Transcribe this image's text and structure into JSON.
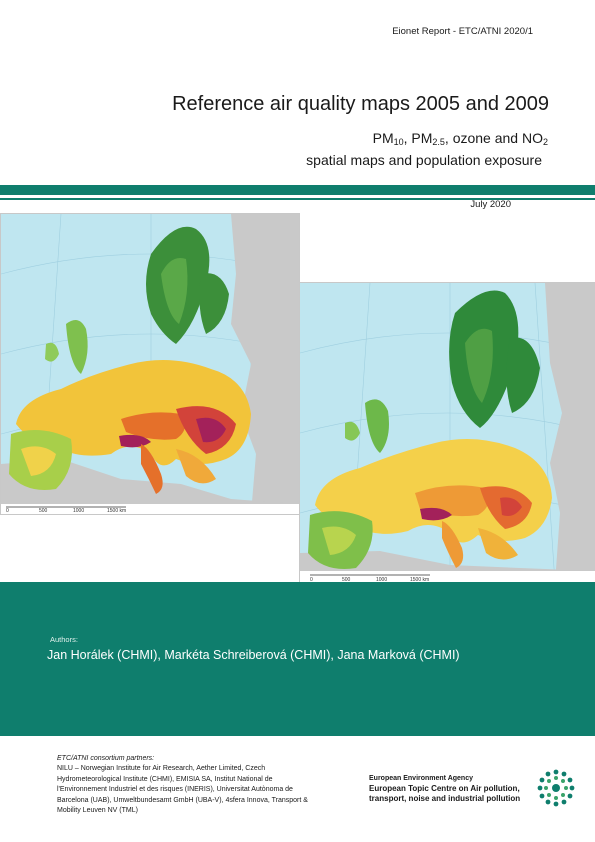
{
  "header": {
    "report_id": "Eionet Report - ETC/ATNI 2020/1",
    "title": "Reference air quality maps 2005 and 2009",
    "subtitle_pm10_main": "PM",
    "subtitle_pm10_sub": "10",
    "subtitle_sep1": ", PM",
    "subtitle_pm25_sub": "2.5",
    "subtitle_sep2": ", ozone and NO",
    "subtitle_no2_sub": "2",
    "subtitle_line2": "spatial maps and population exposure",
    "date": "July 2020"
  },
  "maps": {
    "left_scale": [
      "0",
      "500",
      "1000",
      "1500 km"
    ],
    "right_scale": [
      "0",
      "500",
      "1000",
      "1500 km"
    ]
  },
  "authors": {
    "label": "Authors:",
    "names": "Jan Horálek (CHMI), Markéta Schreiberová (CHMI), Jana Marková (CHMI)"
  },
  "footer": {
    "partners_title": "ETC/ATNI consortium partners:",
    "partners_text": "NILU – Norwegian Institute for Air Research, Aether Limited, Czech Hydrometeorological Institute (CHMI), EMISIA SA, Institut National de l'Environnement Industriel et des risques (INERIS), Universitat Autònoma de Barcelona (UAB), Umweltbundesamt GmbH (UBA-V), 4sfera Innova, Transport & Mobility Leuven NV (TML)",
    "eea": "European Environment Agency",
    "etc_line1": "European Topic Centre on Air pollution,",
    "etc_line2": "transport, noise and industrial pollution"
  },
  "colors": {
    "brand_teal": "#0f7e6d",
    "sea": "#bfe6f0",
    "land_grey": "#c9c9c9"
  }
}
